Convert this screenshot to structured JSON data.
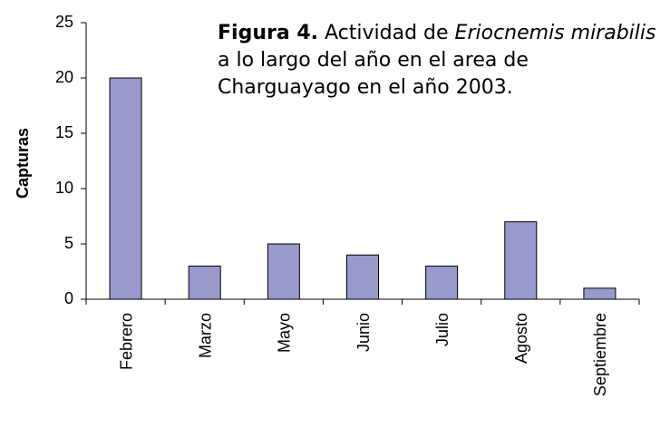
{
  "chart_data": {
    "type": "bar",
    "title": [
      "Figura 4.",
      "Actividad de",
      "Eriocnemis mirabilis",
      "a lo largo del año en el area de Charguayago en el año 2003."
    ],
    "y_label": "Capturas",
    "categories": [
      "Febrero",
      "Marzo",
      "Mayo",
      "Junio",
      "Julio",
      "Agosto",
      "Septiembre"
    ],
    "values": [
      20,
      3,
      5,
      4,
      3,
      7,
      1
    ],
    "color": "#9999cc",
    "ylim": [
      0,
      25
    ],
    "yticks": [
      0,
      5,
      10,
      15,
      20,
      25
    ],
    "grid": false
  }
}
